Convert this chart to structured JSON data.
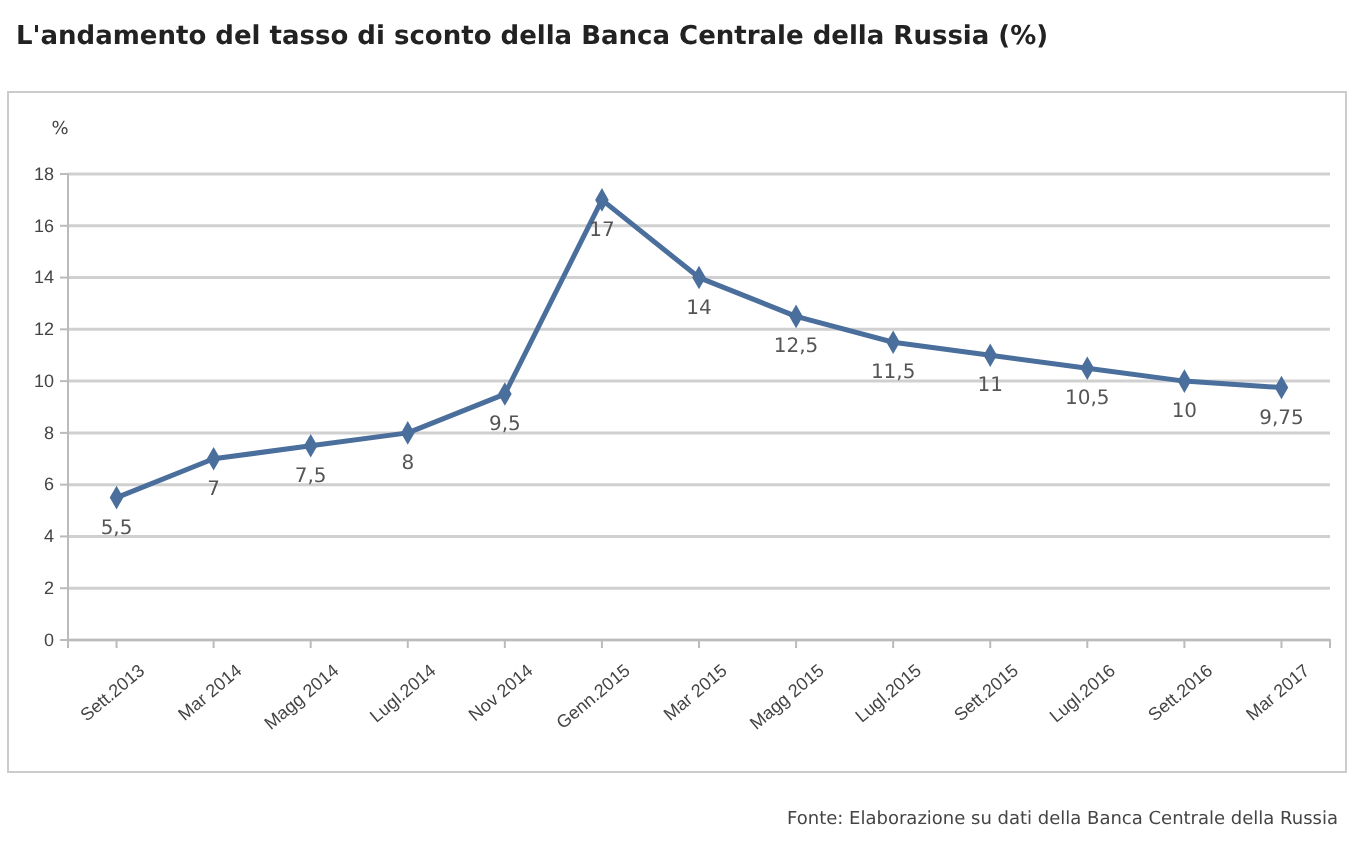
{
  "chart_data": {
    "type": "line",
    "title": "L'andamento del tasso di sconto della Banca Centrale della Russia (%)",
    "ylabel": "%",
    "categories": [
      "Sett.2013",
      "Mar 2014",
      "Magg 2014",
      "Lugl.2014",
      "Nov 2014",
      "Genn.2015",
      "Mar 2015",
      "Magg 2015",
      "Lugl.2015",
      "Sett.2015",
      "Lugl.2016",
      "Sett.2016",
      "Mar 2017"
    ],
    "series": [
      {
        "color": "#4a6f9c",
        "values": [
          5.5,
          7,
          7.5,
          8,
          9.5,
          17,
          14,
          12.5,
          11.5,
          11,
          10.5,
          10,
          9.75
        ],
        "value_labels": [
          "5,5",
          "7",
          "7,5",
          "8",
          "9,5",
          "17",
          "14",
          "12,5",
          "11,5",
          "11",
          "10,5",
          "10",
          "9,75"
        ]
      }
    ],
    "ylim": [
      0,
      18
    ],
    "yticks": [
      0,
      2,
      4,
      6,
      8,
      10,
      12,
      14,
      16,
      18
    ],
    "grid": "y",
    "marker": "diamond",
    "line_style": "solid",
    "annotations": [
      "Fonte: Elaborazione su dati della Banca Centrale della Russia"
    ]
  }
}
